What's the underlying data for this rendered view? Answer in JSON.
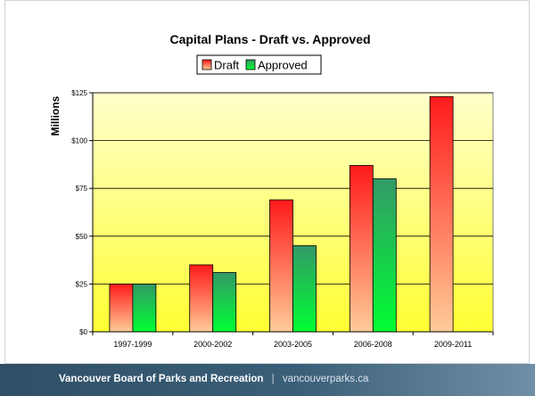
{
  "footer": {
    "org": "Vancouver Board of Parks and Recreation",
    "separator": "|",
    "url": "vancouverparks.ca"
  },
  "chart_data": {
    "type": "bar",
    "title": "Capital Plans - Draft vs. Approved",
    "ylabel": "Millions",
    "xlabel": "",
    "categories": [
      "1997-1999",
      "2000-2002",
      "2003-2005",
      "2006-2008",
      "2009-2011"
    ],
    "series": [
      {
        "name": "Draft",
        "values": [
          25,
          35,
          69,
          87,
          123
        ],
        "color_top": "#ff1a1a",
        "color_bottom": "#ffcc99"
      },
      {
        "name": "Approved",
        "values": [
          25,
          31,
          45,
          80,
          null
        ],
        "color_top": "#339966",
        "color_bottom": "#00ff33"
      }
    ],
    "ylim": [
      0,
      125
    ],
    "yticks": [
      0,
      25,
      50,
      75,
      100,
      125
    ],
    "ytick_labels": [
      "$0",
      "$25",
      "$50",
      "$75",
      "$100",
      "$125"
    ],
    "grid": true,
    "legend_position": "top-center",
    "plot_background": [
      "#ffffcc",
      "#ffff33"
    ]
  }
}
